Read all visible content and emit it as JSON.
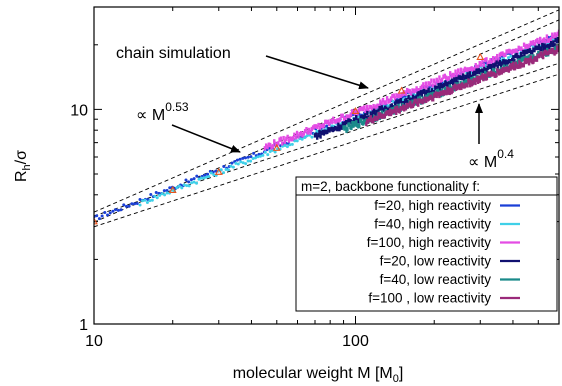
{
  "chart_data": {
    "type": "scatter",
    "scale": "log-log",
    "xlabel_main": "molecular weight M [M",
    "xlabel_sub": "0",
    "xlabel_end": "]",
    "ylabel_main": "R",
    "ylabel_sub": "h",
    "ylabel_end": "/σ",
    "xlim": [
      10,
      600
    ],
    "ylim": [
      1,
      30
    ],
    "x_ticks": [
      {
        "value": 10,
        "label": "10"
      },
      {
        "value": 100,
        "label": "100"
      }
    ],
    "y_ticks": [
      {
        "value": 1,
        "label": "1"
      },
      {
        "value": 10,
        "label": "10"
      }
    ],
    "guide_lines": [
      {
        "name": "exp-0.53-upper",
        "prefactor": 0.98,
        "exponent": 0.53
      },
      {
        "name": "exp-0.53-lower",
        "prefactor": 0.88,
        "exponent": 0.53
      },
      {
        "name": "exp-0.4-upper",
        "prefactor": 1.27,
        "exponent": 0.4
      },
      {
        "name": "exp-0.4-lower",
        "prefactor": 1.13,
        "exponent": 0.4
      }
    ],
    "chain_simulation": {
      "marker": "open-triangle",
      "color": "#e8541e",
      "points": [
        [
          10,
          3.0
        ],
        [
          20,
          4.2
        ],
        [
          30,
          5.1
        ],
        [
          50,
          6.6
        ],
        [
          100,
          9.8
        ],
        [
          150,
          12.2
        ],
        [
          300,
          17.5
        ]
      ]
    },
    "legend": {
      "title": "m=2, backbone functionality f:",
      "placement": "bottom-right"
    },
    "series": [
      {
        "name": "f=20, high reactivity",
        "color": "#1a3fd6",
        "M_start": 10,
        "M_end": 560,
        "a": 1.02,
        "b": 0.482,
        "c": 0.0,
        "style": "dots"
      },
      {
        "name": "f=40, high reactivity",
        "color": "#3fd0e8",
        "M_start": 15,
        "M_end": 580,
        "a": 0.99,
        "b": 0.482,
        "c": 0.0,
        "style": "dots"
      },
      {
        "name": "f=100, high reactivity",
        "color": "#e44ce4",
        "M_start": 45,
        "M_end": 600,
        "a": 1.11,
        "b": 0.47,
        "c": 0.0,
        "style": "band"
      },
      {
        "name": "f=20, low reactivity",
        "color": "#101070",
        "M_start": 70,
        "M_end": 600,
        "a": 1.0,
        "b": 0.475,
        "c": 0.0,
        "style": "band"
      },
      {
        "name": "f=40, low reactivity",
        "color": "#1a8a8a",
        "M_start": 90,
        "M_end": 600,
        "a": 1.01,
        "b": 0.462,
        "c": 0.0,
        "style": "band"
      },
      {
        "name": "f=100 , low reactivity",
        "color": "#9a2a7a",
        "M_start": 110,
        "M_end": 600,
        "a": 1.03,
        "b": 0.456,
        "c": 0.0,
        "style": "band"
      }
    ],
    "annotations": {
      "chain_simulation": "chain simulation",
      "exp053_prefix": "∝ M",
      "exp053_sup": "0.53",
      "exp04_prefix": "∝ M",
      "exp04_sup": "0.4"
    }
  }
}
